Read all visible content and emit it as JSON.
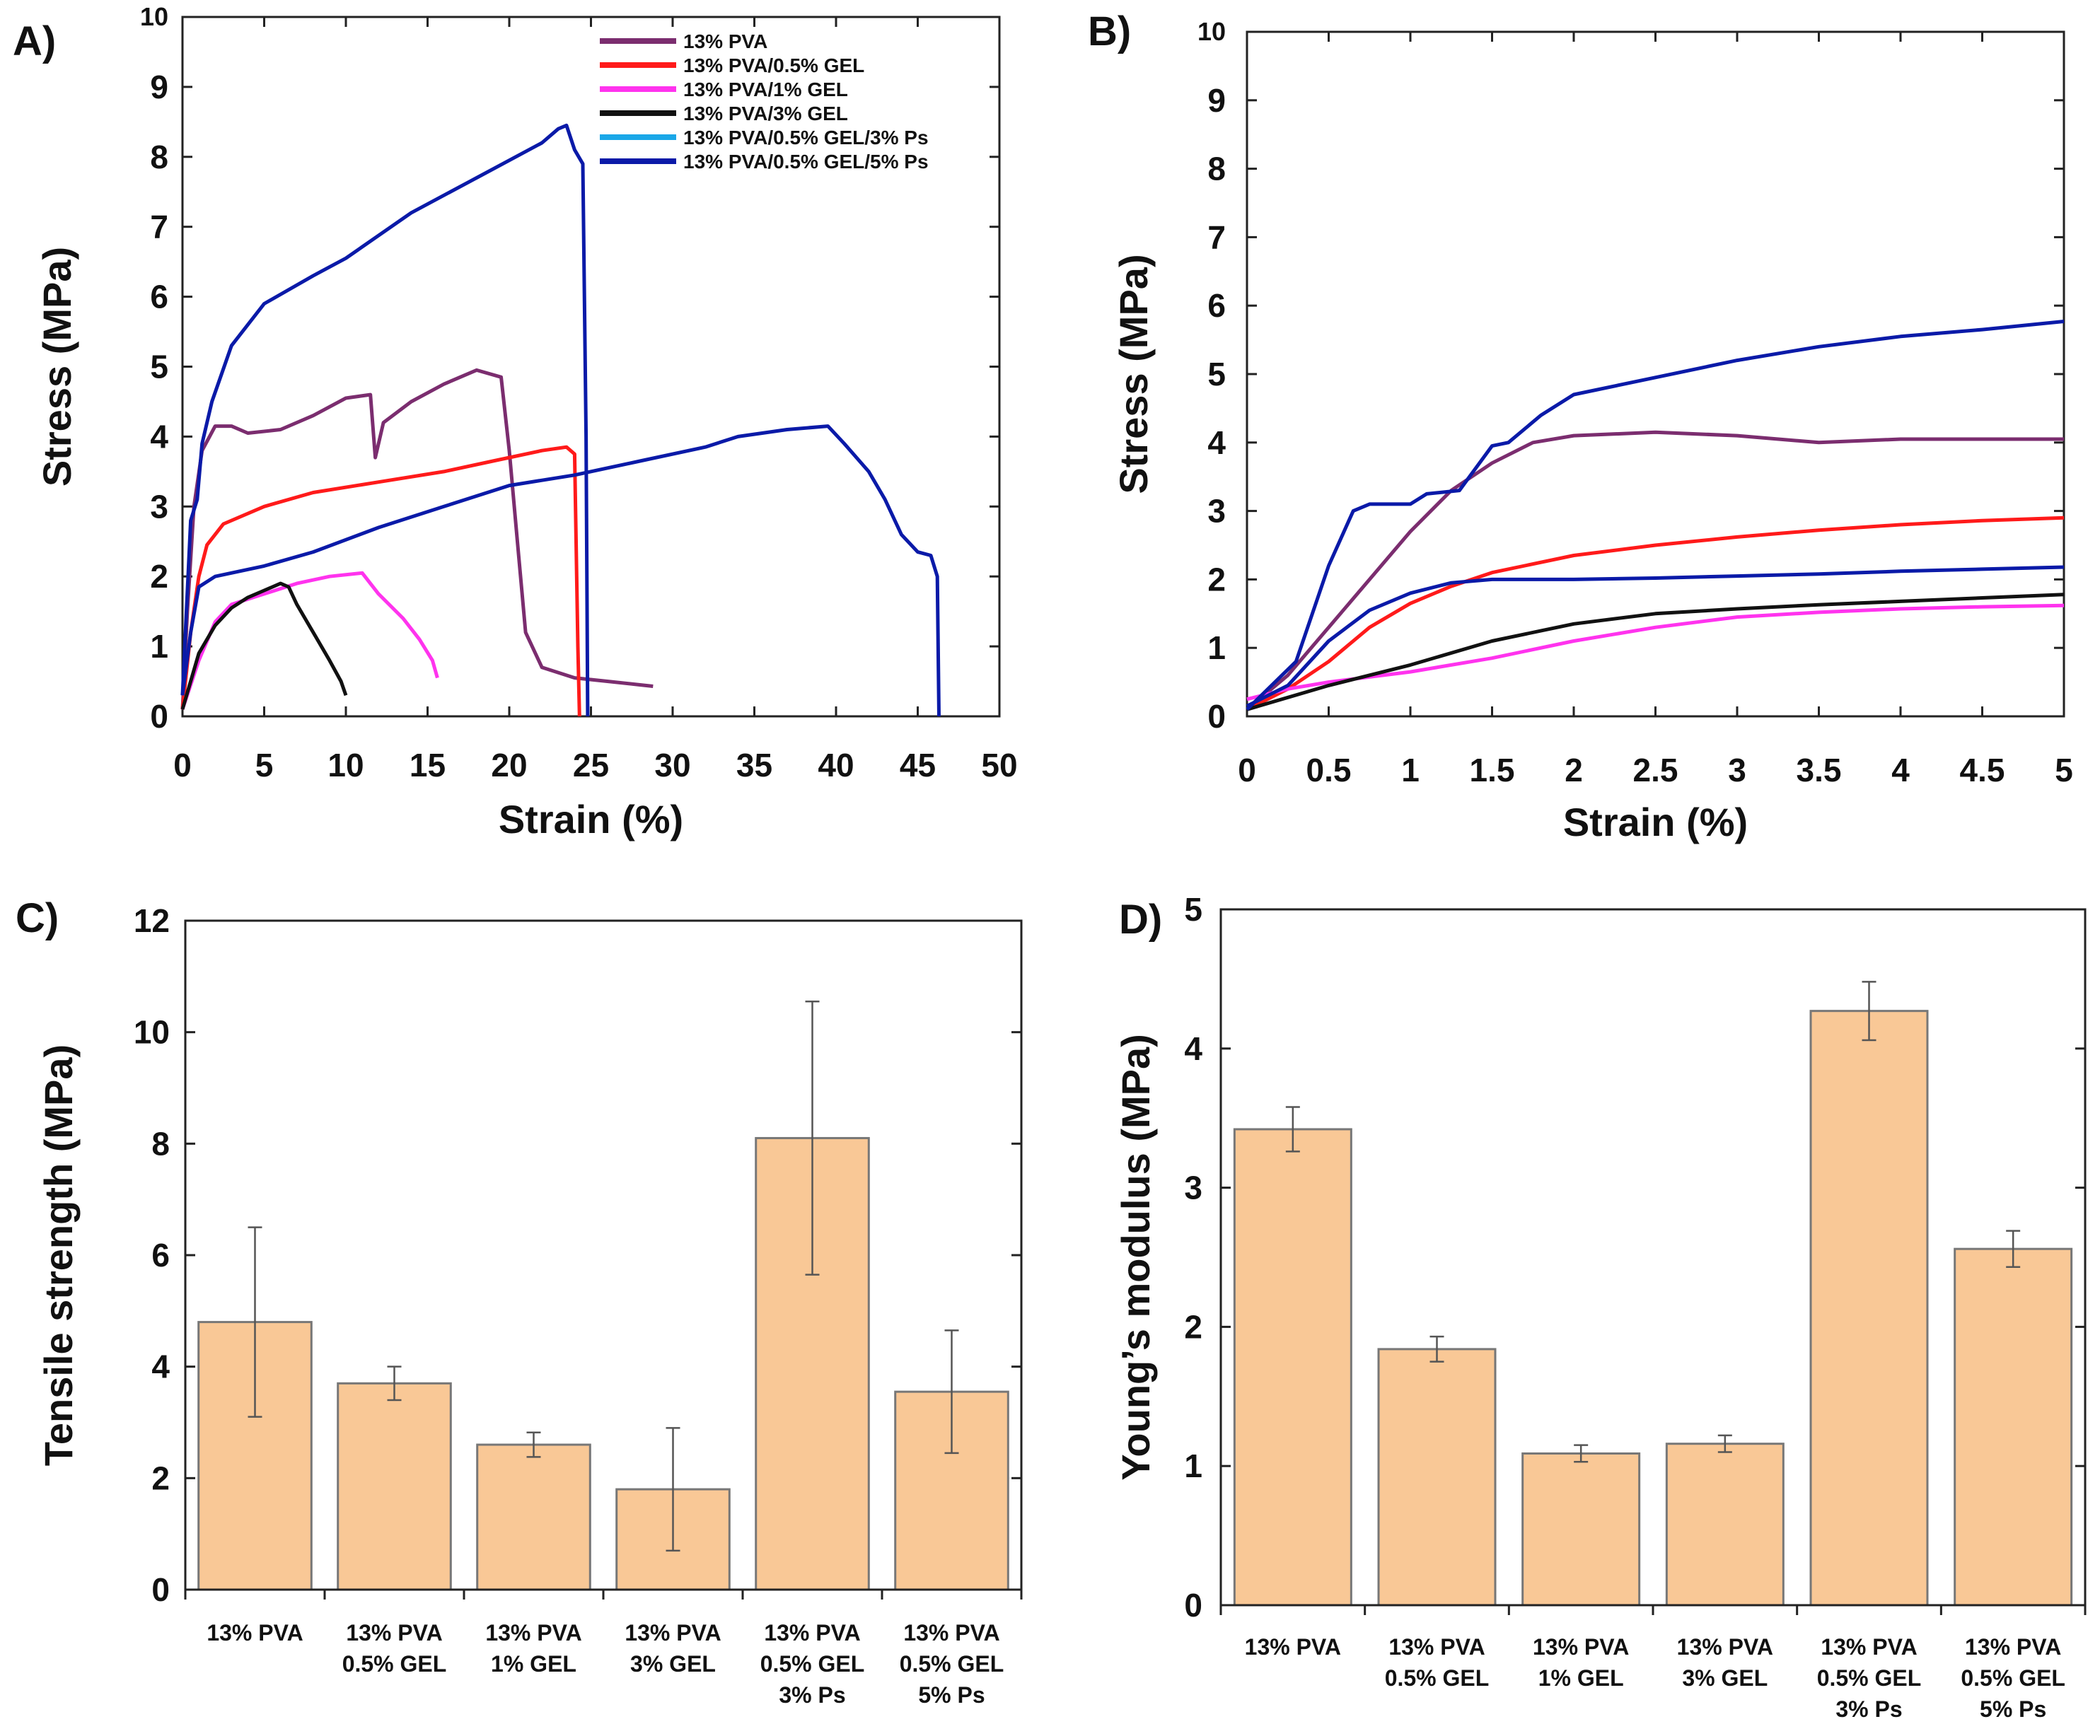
{
  "panels": {
    "a": "A)",
    "b": "B)",
    "c": "C)",
    "d": "D)"
  },
  "colors": {
    "pva": "#7b2d6f",
    "gel05": "#ff1a1a",
    "gel1": "#ff33ee",
    "gel3": "#111111",
    "ps3": "#1aa7e8",
    "ps5": "#0a1aa8",
    "bar_fill": "#f9c896",
    "bar_stroke": "#777777"
  },
  "chart_data": [
    {
      "id": "A",
      "type": "line",
      "title": "",
      "xlabel": "Strain (%)",
      "ylabel": "Stress (MPa)",
      "xlim": [
        0,
        50
      ],
      "ylim": [
        0,
        10
      ],
      "xticks": [
        0,
        5,
        10,
        15,
        20,
        25,
        30,
        35,
        40,
        45,
        50
      ],
      "yticks": [
        0,
        1,
        2,
        3,
        4,
        5,
        6,
        7,
        8,
        9,
        10
      ],
      "legend": [
        "13% PVA",
        "13% PVA/0.5% GEL",
        "13% PVA/1% GEL",
        "13% PVA/3% GEL",
        "13% PVA/0.5% GEL/3% Ps",
        "13% PVA/0.5% GEL/5% Ps"
      ],
      "legend_position": "top-right",
      "series": [
        {
          "name": "13% PVA",
          "color_key": "pva",
          "points": [
            [
              0,
              0.1
            ],
            [
              0.3,
              1.5
            ],
            [
              0.7,
              3.0
            ],
            [
              1.2,
              3.8
            ],
            [
              2,
              4.15
            ],
            [
              3,
              4.15
            ],
            [
              4,
              4.05
            ],
            [
              6,
              4.1
            ],
            [
              8,
              4.3
            ],
            [
              10,
              4.55
            ],
            [
              11.5,
              4.6
            ],
            [
              11.8,
              3.7
            ],
            [
              12.3,
              4.2
            ],
            [
              14,
              4.5
            ],
            [
              16,
              4.75
            ],
            [
              18,
              4.95
            ],
            [
              19.5,
              4.85
            ],
            [
              20,
              3.8
            ],
            [
              20.5,
              2.5
            ],
            [
              21,
              1.2
            ],
            [
              22,
              0.7
            ],
            [
              24,
              0.55
            ],
            [
              26,
              0.5
            ],
            [
              28,
              0.45
            ],
            [
              28.8,
              0.43
            ]
          ]
        },
        {
          "name": "13% PVA/0.5% GEL",
          "color_key": "gel05",
          "points": [
            [
              0,
              0.1
            ],
            [
              0.5,
              1.2
            ],
            [
              1,
              2.0
            ],
            [
              1.5,
              2.45
            ],
            [
              2.5,
              2.75
            ],
            [
              5,
              3.0
            ],
            [
              8,
              3.2
            ],
            [
              12,
              3.35
            ],
            [
              16,
              3.5
            ],
            [
              19,
              3.65
            ],
            [
              22,
              3.8
            ],
            [
              23.5,
              3.85
            ],
            [
              24,
              3.75
            ],
            [
              24.2,
              1.0
            ],
            [
              24.3,
              0.0
            ]
          ]
        },
        {
          "name": "13% PVA/1% GEL",
          "color_key": "gel1",
          "points": [
            [
              0,
              0.1
            ],
            [
              1,
              0.8
            ],
            [
              2,
              1.35
            ],
            [
              3,
              1.6
            ],
            [
              5,
              1.75
            ],
            [
              7,
              1.9
            ],
            [
              9,
              2.0
            ],
            [
              11,
              2.05
            ],
            [
              12,
              1.75
            ],
            [
              13.5,
              1.4
            ],
            [
              14.5,
              1.1
            ],
            [
              15.3,
              0.8
            ],
            [
              15.6,
              0.55
            ]
          ]
        },
        {
          "name": "13% PVA/3% GEL",
          "color_key": "gel3",
          "points": [
            [
              0,
              0.1
            ],
            [
              1,
              0.9
            ],
            [
              2,
              1.3
            ],
            [
              3,
              1.55
            ],
            [
              4,
              1.7
            ],
            [
              5,
              1.8
            ],
            [
              6,
              1.9
            ],
            [
              6.5,
              1.85
            ],
            [
              7,
              1.6
            ],
            [
              8,
              1.2
            ],
            [
              9,
              0.8
            ],
            [
              9.7,
              0.5
            ],
            [
              10,
              0.3
            ]
          ]
        },
        {
          "name": "13% PVA/0.5% GEL/5% Ps",
          "color_key": "ps5",
          "curve": "upper",
          "points": [
            [
              0,
              0.3
            ],
            [
              0.5,
              2.8
            ],
            [
              0.9,
              3.1
            ],
            [
              1.2,
              3.9
            ],
            [
              1.8,
              4.5
            ],
            [
              3,
              5.3
            ],
            [
              5,
              5.9
            ],
            [
              8,
              6.3
            ],
            [
              10,
              6.55
            ],
            [
              14,
              7.2
            ],
            [
              18,
              7.7
            ],
            [
              22,
              8.2
            ],
            [
              23,
              8.4
            ],
            [
              23.5,
              8.45
            ],
            [
              24,
              8.1
            ],
            [
              24.5,
              7.9
            ],
            [
              24.7,
              4.0
            ],
            [
              24.8,
              0.0
            ]
          ]
        },
        {
          "name": "13% PVA/0.5% GEL/5% Ps",
          "color_key": "ps5",
          "curve": "lower",
          "points": [
            [
              0,
              0.3
            ],
            [
              0.5,
              1.2
            ],
            [
              1,
              1.85
            ],
            [
              2,
              2.0
            ],
            [
              5,
              2.15
            ],
            [
              8,
              2.35
            ],
            [
              12,
              2.7
            ],
            [
              16,
              3.0
            ],
            [
              20,
              3.3
            ],
            [
              24,
              3.45
            ],
            [
              28,
              3.65
            ],
            [
              32,
              3.85
            ],
            [
              34,
              4.0
            ],
            [
              37,
              4.1
            ],
            [
              39.5,
              4.15
            ],
            [
              40.5,
              3.9
            ],
            [
              42,
              3.5
            ],
            [
              43,
              3.1
            ],
            [
              44,
              2.6
            ],
            [
              45,
              2.35
            ],
            [
              45.8,
              2.3
            ],
            [
              46.2,
              2.0
            ],
            [
              46.3,
              0.0
            ]
          ]
        }
      ]
    },
    {
      "id": "B",
      "type": "line",
      "title": "",
      "xlabel": "Strain (%)",
      "ylabel": "Stress (MPa)",
      "xlim": [
        0,
        5
      ],
      "ylim": [
        0,
        10
      ],
      "xticks": [
        "0",
        "0.5",
        "1",
        "1.5",
        "2",
        "2.5",
        "3",
        "3.5",
        "4",
        "4.5",
        "5"
      ],
      "yticks": [
        0,
        1,
        2,
        3,
        4,
        5,
        6,
        7,
        8,
        9,
        10
      ],
      "series": [
        {
          "name": "13% PVA",
          "color_key": "pva",
          "points": [
            [
              0,
              0.1
            ],
            [
              0.25,
              0.6
            ],
            [
              0.5,
              1.3
            ],
            [
              0.75,
              2.0
            ],
            [
              1,
              2.7
            ],
            [
              1.25,
              3.3
            ],
            [
              1.5,
              3.7
            ],
            [
              1.75,
              4.0
            ],
            [
              2,
              4.1
            ],
            [
              2.5,
              4.15
            ],
            [
              3,
              4.1
            ],
            [
              3.5,
              4.0
            ],
            [
              4,
              4.05
            ],
            [
              4.5,
              4.05
            ],
            [
              5,
              4.05
            ]
          ]
        },
        {
          "name": "13% PVA/0.5% GEL",
          "color_key": "gel05",
          "points": [
            [
              0,
              0.1
            ],
            [
              0.25,
              0.4
            ],
            [
              0.5,
              0.8
            ],
            [
              0.75,
              1.3
            ],
            [
              1,
              1.65
            ],
            [
              1.25,
              1.9
            ],
            [
              1.5,
              2.1
            ],
            [
              2,
              2.35
            ],
            [
              2.5,
              2.5
            ],
            [
              3,
              2.62
            ],
            [
              3.5,
              2.72
            ],
            [
              4,
              2.8
            ],
            [
              4.5,
              2.86
            ],
            [
              5,
              2.9
            ]
          ]
        },
        {
          "name": "13% PVA/1% GEL",
          "color_key": "gel1",
          "points": [
            [
              0,
              0.25
            ],
            [
              0.25,
              0.4
            ],
            [
              0.5,
              0.5
            ],
            [
              1,
              0.65
            ],
            [
              1.5,
              0.85
            ],
            [
              2,
              1.1
            ],
            [
              2.5,
              1.3
            ],
            [
              3,
              1.45
            ],
            [
              3.5,
              1.52
            ],
            [
              4,
              1.57
            ],
            [
              4.5,
              1.6
            ],
            [
              5,
              1.62
            ]
          ]
        },
        {
          "name": "13% PVA/3% GEL",
          "color_key": "gel3",
          "points": [
            [
              0,
              0.1
            ],
            [
              0.5,
              0.45
            ],
            [
              1,
              0.75
            ],
            [
              1.5,
              1.1
            ],
            [
              2,
              1.35
            ],
            [
              2.5,
              1.5
            ],
            [
              3,
              1.57
            ],
            [
              3.5,
              1.63
            ],
            [
              4,
              1.68
            ],
            [
              4.5,
              1.73
            ],
            [
              5,
              1.78
            ]
          ]
        },
        {
          "name": "13% PVA/0.5% GEL/5% Ps",
          "color_key": "ps5",
          "curve": "upper",
          "points": [
            [
              0,
              0.1
            ],
            [
              0.3,
              0.8
            ],
            [
              0.5,
              2.2
            ],
            [
              0.65,
              3.0
            ],
            [
              0.75,
              3.1
            ],
            [
              1,
              3.1
            ],
            [
              1.1,
              3.25
            ],
            [
              1.3,
              3.3
            ],
            [
              1.5,
              3.95
            ],
            [
              1.6,
              4.0
            ],
            [
              1.8,
              4.4
            ],
            [
              2,
              4.7
            ],
            [
              2.5,
              4.95
            ],
            [
              3,
              5.2
            ],
            [
              3.5,
              5.4
            ],
            [
              4,
              5.55
            ],
            [
              4.5,
              5.65
            ],
            [
              5,
              5.77
            ]
          ]
        },
        {
          "name": "13% PVA/0.5% GEL/5% Ps",
          "color_key": "ps5",
          "curve": "lower",
          "points": [
            [
              0,
              0.15
            ],
            [
              0.25,
              0.45
            ],
            [
              0.5,
              1.1
            ],
            [
              0.75,
              1.55
            ],
            [
              1,
              1.8
            ],
            [
              1.25,
              1.95
            ],
            [
              1.5,
              2.0
            ],
            [
              2,
              2.0
            ],
            [
              2.5,
              2.02
            ],
            [
              3,
              2.05
            ],
            [
              3.5,
              2.08
            ],
            [
              4,
              2.12
            ],
            [
              4.5,
              2.15
            ],
            [
              5,
              2.18
            ]
          ]
        }
      ]
    },
    {
      "id": "C",
      "type": "bar",
      "title": "",
      "xlabel": "",
      "ylabel": "Tensile strength (MPa)",
      "ylim": [
        0,
        12
      ],
      "yticks": [
        0,
        2,
        4,
        6,
        8,
        10,
        12
      ],
      "categories": [
        [
          "13% PVA"
        ],
        [
          "13% PVA",
          "0.5% GEL"
        ],
        [
          "13% PVA",
          "1% GEL"
        ],
        [
          "13% PVA",
          "3% GEL"
        ],
        [
          "13% PVA",
          "0.5% GEL",
          "3% Ps"
        ],
        [
          "13% PVA",
          "0.5% GEL",
          "5% Ps"
        ]
      ],
      "values": [
        4.8,
        3.7,
        2.6,
        1.8,
        8.1,
        3.55
      ],
      "errors": [
        1.7,
        0.3,
        0.22,
        1.1,
        2.45,
        1.1
      ]
    },
    {
      "id": "D",
      "type": "bar",
      "title": "",
      "xlabel": "",
      "ylabel": "Young’s modulus (MPa)",
      "ylim": [
        0,
        5
      ],
      "yticks": [
        0,
        1,
        2,
        3,
        4,
        5
      ],
      "categories": [
        [
          "13% PVA"
        ],
        [
          "13% PVA",
          "0.5% GEL"
        ],
        [
          "13% PVA",
          "1% GEL"
        ],
        [
          "13% PVA",
          "3% GEL"
        ],
        [
          "13% PVA",
          "0.5% GEL",
          "3% Ps"
        ],
        [
          "13% PVA",
          "0.5% GEL",
          "5% Ps"
        ]
      ],
      "values": [
        3.42,
        1.84,
        1.09,
        1.16,
        4.27,
        2.56
      ],
      "errors": [
        0.16,
        0.09,
        0.06,
        0.06,
        0.21,
        0.13
      ]
    }
  ]
}
